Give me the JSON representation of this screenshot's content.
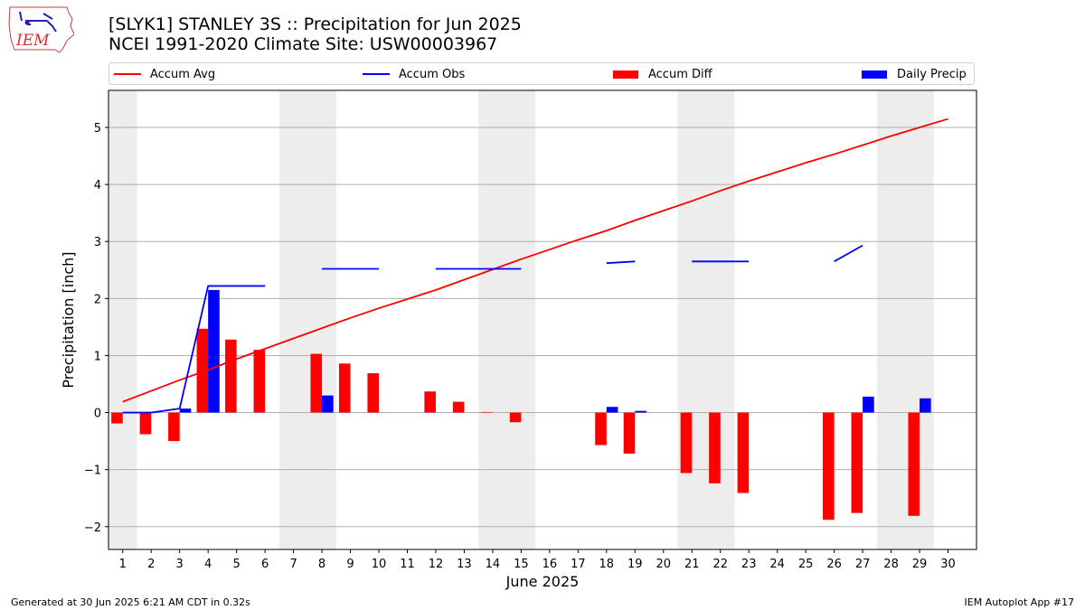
{
  "header": {
    "title_line1": "[SLYK1] STANLEY 3S :: Precipitation for Jun 2025",
    "title_line2": "NCEI 1991-2020 Climate Site: USW00003967",
    "logo_text": "IEM"
  },
  "legend": {
    "items": [
      {
        "label": "Accum Avg",
        "color": "#ff0000",
        "kind": "line"
      },
      {
        "label": "Accum Obs",
        "color": "#0000ff",
        "kind": "line"
      },
      {
        "label": "Accum Diff",
        "color": "#ff0000",
        "kind": "box"
      },
      {
        "label": "Daily Precip",
        "color": "#0000ff",
        "kind": "box"
      }
    ]
  },
  "footer": {
    "left": "Generated at 30 Jun 2025 6:21 AM CDT in 0.32s",
    "right": "IEM Autoplot App #17"
  },
  "chart_data": {
    "type": "bar",
    "xlabel": "June 2025",
    "ylabel": "Precipitation [inch]",
    "xlim": [
      0.5,
      31
    ],
    "ylim": [
      -2.4,
      5.65
    ],
    "yticks": [
      -2,
      -1,
      0,
      1,
      2,
      3,
      4,
      5
    ],
    "ytick_labels": [
      "−2",
      "−1",
      "0",
      "1",
      "2",
      "3",
      "4",
      "5"
    ],
    "categories": [
      "1",
      "2",
      "3",
      "4",
      "5",
      "6",
      "7",
      "8",
      "9",
      "10",
      "11",
      "12",
      "13",
      "14",
      "15",
      "16",
      "17",
      "18",
      "19",
      "20",
      "21",
      "22",
      "23",
      "24",
      "25",
      "26",
      "27",
      "28",
      "29",
      "30"
    ],
    "grid": "horizontal",
    "weekend_shading": [
      [
        0.5,
        1.5
      ],
      [
        6.5,
        8.5
      ],
      [
        13.5,
        15.5
      ],
      [
        20.5,
        22.5
      ],
      [
        27.5,
        29.5
      ]
    ],
    "colors": {
      "avg": "#ff0000",
      "obs": "#0000ff",
      "diff": "#ff0000",
      "daily": "#0000ff",
      "shade": "#ededed",
      "grid": "#b0b0b0"
    },
    "series": [
      {
        "name": "Accum Avg",
        "kind": "line",
        "values": [
          0.19,
          0.38,
          0.57,
          0.75,
          0.94,
          1.12,
          1.3,
          1.48,
          1.66,
          1.83,
          1.99,
          2.15,
          2.33,
          2.51,
          2.69,
          2.86,
          3.03,
          3.19,
          3.37,
          3.54,
          3.71,
          3.89,
          4.06,
          4.22,
          4.38,
          4.53,
          4.69,
          4.85,
          5.0,
          5.15
        ]
      },
      {
        "name": "Accum Obs",
        "kind": "line",
        "values": [
          0.0,
          0.0,
          0.07,
          2.22,
          2.22,
          2.22,
          null,
          2.52,
          2.52,
          2.52,
          null,
          2.52,
          2.52,
          2.52,
          2.52,
          null,
          null,
          2.62,
          2.65,
          null,
          2.65,
          2.65,
          2.65,
          null,
          null,
          2.65,
          2.93,
          null,
          null,
          null
        ]
      },
      {
        "name": "Accum Diff",
        "kind": "bar",
        "values": [
          -0.19,
          -0.38,
          -0.5,
          1.47,
          1.28,
          1.1,
          null,
          1.03,
          0.86,
          0.69,
          null,
          0.37,
          0.19,
          0.01,
          -0.17,
          null,
          null,
          -0.57,
          -0.72,
          null,
          -1.06,
          -1.24,
          -1.41,
          null,
          null,
          -1.88,
          -1.76,
          null,
          -1.81,
          null
        ]
      },
      {
        "name": "Daily Precip",
        "kind": "bar",
        "values": [
          0.0,
          0.0,
          0.07,
          2.15,
          0.0,
          0.0,
          null,
          0.3,
          0.0,
          0.0,
          null,
          0.0,
          0.0,
          0.0,
          0.0,
          null,
          null,
          0.1,
          0.03,
          null,
          0.0,
          0.0,
          0.0,
          null,
          null,
          0.0,
          0.28,
          null,
          0.25,
          null
        ]
      }
    ]
  }
}
